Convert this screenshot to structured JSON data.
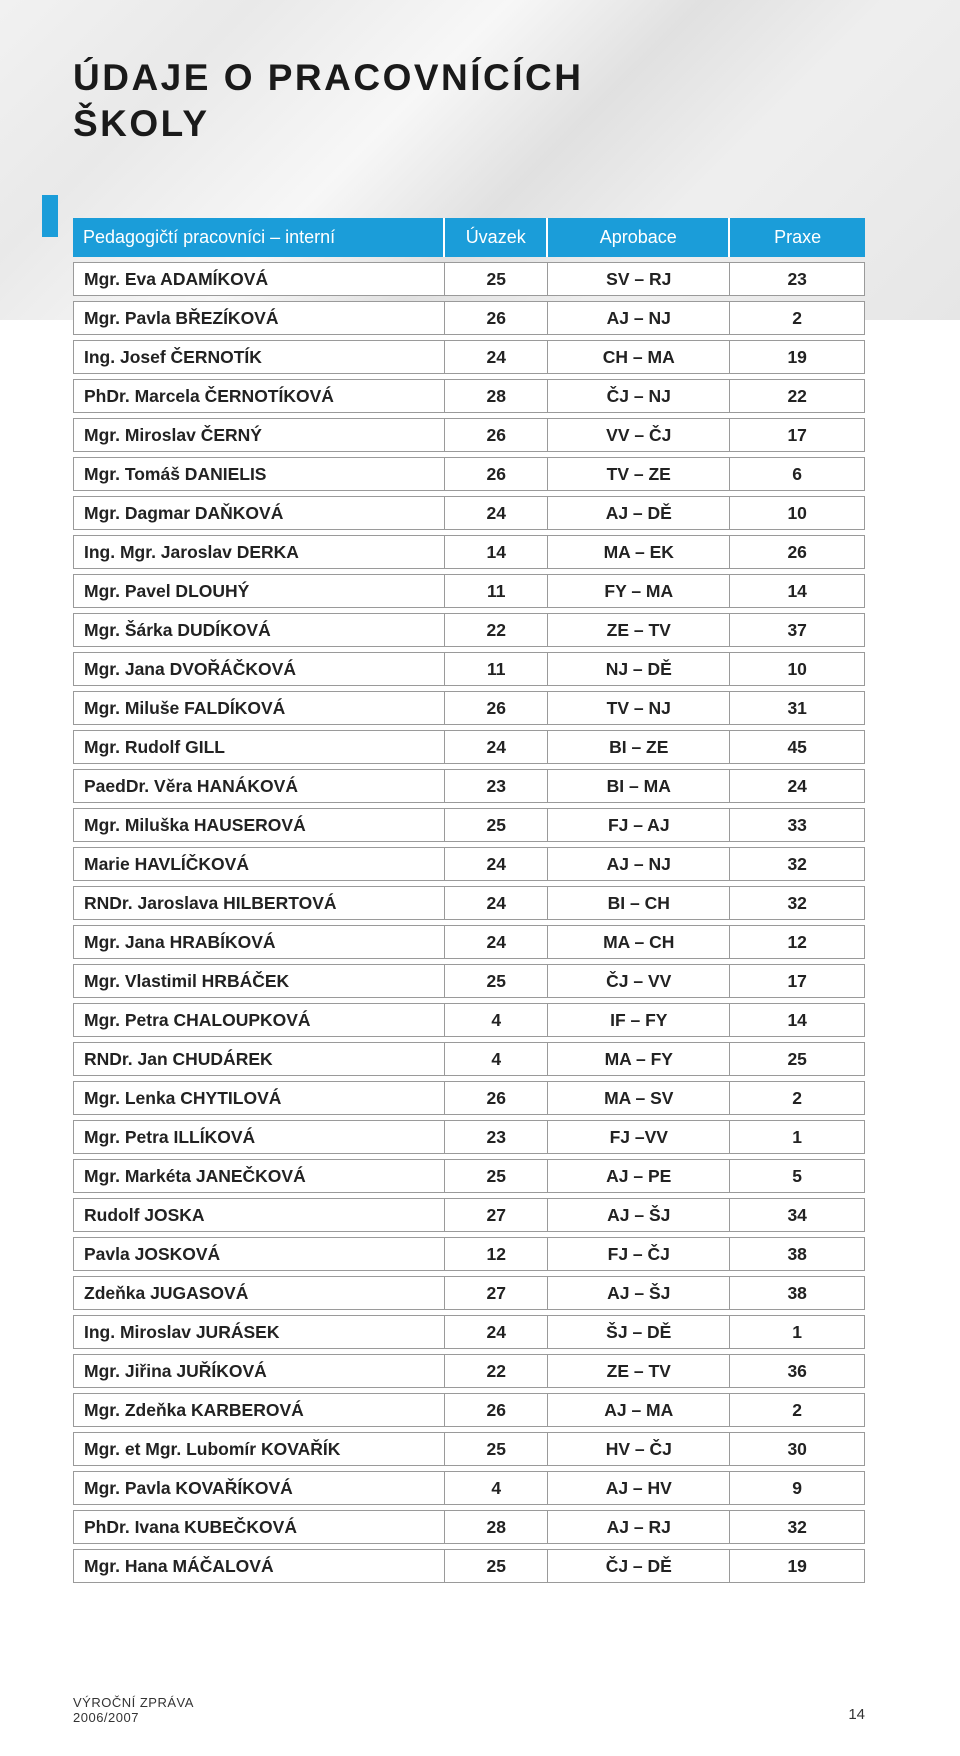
{
  "title_line1": "ÚDAJE O PRACOVNÍCÍCH",
  "title_line2": "ŠKOLY",
  "header": {
    "name": "Pedagogičtí pracovníci – interní",
    "uvazek": "Úvazek",
    "aprobace": "Aprobace",
    "praxe": "Praxe"
  },
  "rows": [
    {
      "name": "Mgr. Eva ADAMÍKOVÁ",
      "uvazek": "25",
      "aprobace": "SV – RJ",
      "praxe": "23"
    },
    {
      "name": "Mgr. Pavla BŘEZÍKOVÁ",
      "uvazek": "26",
      "aprobace": "AJ – NJ",
      "praxe": "2"
    },
    {
      "name": "Ing. Josef ČERNOTÍK",
      "uvazek": "24",
      "aprobace": "CH – MA",
      "praxe": "19"
    },
    {
      "name": "PhDr. Marcela ČERNOTÍKOVÁ",
      "uvazek": "28",
      "aprobace": "ČJ – NJ",
      "praxe": "22"
    },
    {
      "name": "Mgr. Miroslav ČERNÝ",
      "uvazek": "26",
      "aprobace": "VV – ČJ",
      "praxe": "17"
    },
    {
      "name": "Mgr. Tomáš DANIELIS",
      "uvazek": "26",
      "aprobace": "TV – ZE",
      "praxe": "6"
    },
    {
      "name": "Mgr. Dagmar DAŇKOVÁ",
      "uvazek": "24",
      "aprobace": "AJ – DĚ",
      "praxe": "10"
    },
    {
      "name": "Ing. Mgr. Jaroslav DERKA",
      "uvazek": "14",
      "aprobace": "MA – EK",
      "praxe": "26"
    },
    {
      "name": "Mgr. Pavel DLOUHÝ",
      "uvazek": "11",
      "aprobace": "FY – MA",
      "praxe": "14"
    },
    {
      "name": "Mgr. Šárka DUDÍKOVÁ",
      "uvazek": "22",
      "aprobace": "ZE – TV",
      "praxe": "37"
    },
    {
      "name": "Mgr. Jana DVOŘÁČKOVÁ",
      "uvazek": "11",
      "aprobace": "NJ – DĚ",
      "praxe": "10"
    },
    {
      "name": "Mgr. Miluše FALDÍKOVÁ",
      "uvazek": "26",
      "aprobace": "TV – NJ",
      "praxe": "31"
    },
    {
      "name": "Mgr. Rudolf GILL",
      "uvazek": "24",
      "aprobace": "BI – ZE",
      "praxe": "45"
    },
    {
      "name": "PaedDr. Věra HANÁKOVÁ",
      "uvazek": "23",
      "aprobace": "BI – MA",
      "praxe": "24"
    },
    {
      "name": "Mgr. Miluška HAUSEROVÁ",
      "uvazek": "25",
      "aprobace": "FJ – AJ",
      "praxe": "33"
    },
    {
      "name": "Marie HAVLÍČKOVÁ",
      "uvazek": "24",
      "aprobace": "AJ – NJ",
      "praxe": "32"
    },
    {
      "name": "RNDr. Jaroslava HILBERTOVÁ",
      "uvazek": "24",
      "aprobace": "BI – CH",
      "praxe": "32"
    },
    {
      "name": "Mgr. Jana HRABÍKOVÁ",
      "uvazek": "24",
      "aprobace": "MA – CH",
      "praxe": "12"
    },
    {
      "name": "Mgr. Vlastimil HRBÁČEK",
      "uvazek": "25",
      "aprobace": "ČJ – VV",
      "praxe": "17"
    },
    {
      "name": "Mgr. Petra CHALOUPKOVÁ",
      "uvazek": "4",
      "aprobace": "IF – FY",
      "praxe": "14"
    },
    {
      "name": "RNDr. Jan CHUDÁREK",
      "uvazek": "4",
      "aprobace": "MA – FY",
      "praxe": "25"
    },
    {
      "name": "Mgr. Lenka CHYTILOVÁ",
      "uvazek": "26",
      "aprobace": "MA – SV",
      "praxe": "2"
    },
    {
      "name": "Mgr. Petra ILLÍKOVÁ",
      "uvazek": "23",
      "aprobace": "FJ –VV",
      "praxe": "1"
    },
    {
      "name": "Mgr. Markéta JANEČKOVÁ",
      "uvazek": "25",
      "aprobace": "AJ – PE",
      "praxe": "5"
    },
    {
      "name": "Rudolf JOSKA",
      "uvazek": "27",
      "aprobace": "AJ – ŠJ",
      "praxe": "34"
    },
    {
      "name": "Pavla JOSKOVÁ",
      "uvazek": "12",
      "aprobace": "FJ – ČJ",
      "praxe": "38"
    },
    {
      "name": "Zdeňka JUGASOVÁ",
      "uvazek": "27",
      "aprobace": "AJ – ŠJ",
      "praxe": "38"
    },
    {
      "name": "Ing. Miroslav JURÁSEK",
      "uvazek": "24",
      "aprobace": "ŠJ – DĚ",
      "praxe": "1"
    },
    {
      "name": "Mgr. Jiřina JUŘÍKOVÁ",
      "uvazek": "22",
      "aprobace": "ZE – TV",
      "praxe": "36"
    },
    {
      "name": "Mgr. Zdeňka KARBEROVÁ",
      "uvazek": "26",
      "aprobace": "AJ – MA",
      "praxe": "2"
    },
    {
      "name": "Mgr. et Mgr. Lubomír KOVAŘÍK",
      "uvazek": "25",
      "aprobace": "HV – ČJ",
      "praxe": "30"
    },
    {
      "name": "Mgr. Pavla KOVAŘÍKOVÁ",
      "uvazek": "4",
      "aprobace": "AJ – HV",
      "praxe": "9"
    },
    {
      "name": "PhDr. Ivana KUBEČKOVÁ",
      "uvazek": "28",
      "aprobace": "AJ – RJ",
      "praxe": "32"
    },
    {
      "name": "Mgr. Hana MÁČALOVÁ",
      "uvazek": "25",
      "aprobace": "ČJ – DĚ",
      "praxe": "19"
    }
  ],
  "footer_line1": "VÝROČNÍ ZPRÁVA",
  "footer_line2": "2006/2007",
  "page_number": "14",
  "colors": {
    "accent": "#1b9dd9",
    "text": "#222222",
    "border": "#9a9a9a"
  }
}
